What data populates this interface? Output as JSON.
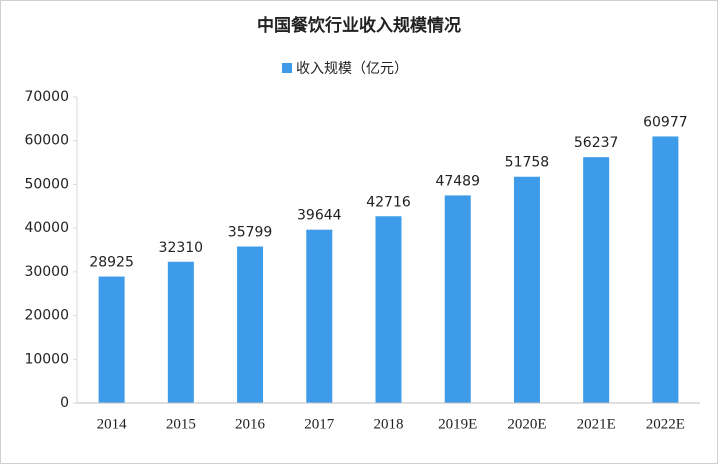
{
  "chart_data": {
    "type": "bar",
    "title": "中国餐饮行业收入规模情况",
    "categories": [
      "2014",
      "2015",
      "2016",
      "2017",
      "2018",
      "2019E",
      "2020E",
      "2021E",
      "2022E"
    ],
    "series": [
      {
        "name": "收入规模（亿元）",
        "color": "#3d9be9",
        "values": [
          28925,
          32310,
          35799,
          39644,
          42716,
          47489,
          51758,
          56237,
          60977
        ]
      }
    ],
    "ylim": [
      0,
      70000
    ],
    "yticks": [
      0,
      10000,
      20000,
      30000,
      40000,
      50000,
      60000,
      70000
    ],
    "grid": false,
    "legend": "top"
  }
}
